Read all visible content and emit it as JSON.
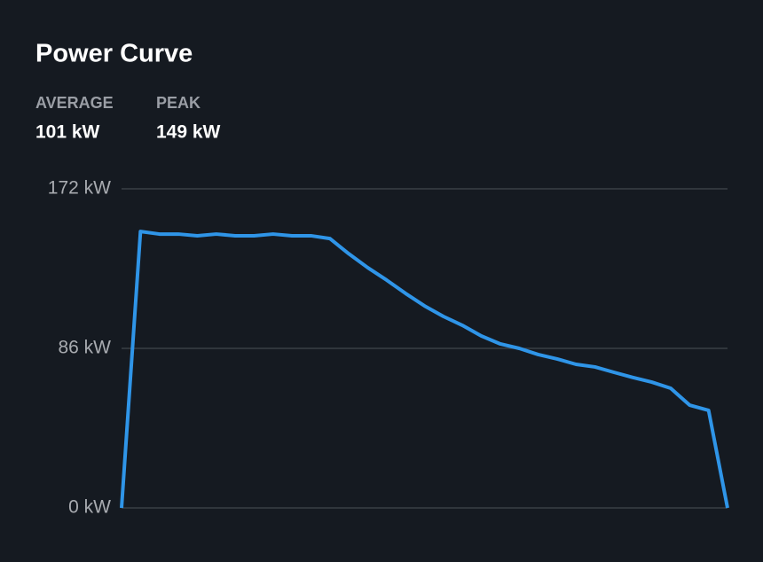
{
  "chart_data": {
    "type": "line",
    "title": "Power Curve",
    "stats": [
      {
        "label": "AVERAGE",
        "value": "101 kW"
      },
      {
        "label": "PEAK",
        "value": "149 kW"
      }
    ],
    "values": [
      0,
      149,
      147.6,
      147.6,
      146.7,
      147.6,
      146.7,
      146.7,
      147.6,
      146.7,
      146.7,
      145.2,
      137,
      129.5,
      122.8,
      115.6,
      108.9,
      103.2,
      98.4,
      92.7,
      88.4,
      86,
      82.7,
      80.3,
      77.4,
      76,
      73.1,
      70.3,
      67.8,
      64.5,
      55.4,
      52.6,
      0
    ],
    "color": "#2f95e8",
    "ylim": [
      0,
      172
    ],
    "yticks": [
      {
        "value": 0,
        "label": "0 kW"
      },
      {
        "value": 86,
        "label": "86 kW"
      },
      {
        "value": 172,
        "label": "172 kW"
      }
    ],
    "grid": true
  }
}
